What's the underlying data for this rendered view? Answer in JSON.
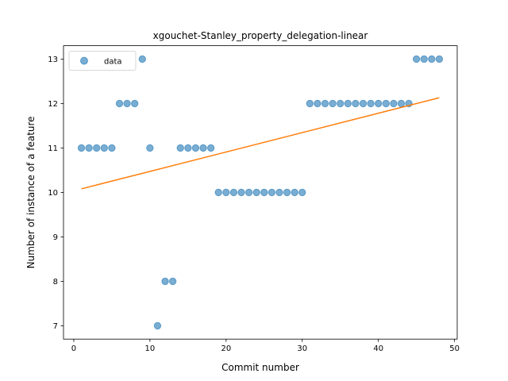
{
  "chart_data": {
    "type": "scatter",
    "title": "xgouchet-Stanley_property_delegation-linear",
    "xlabel": "Commit number",
    "ylabel": "Number of instance of a feature",
    "xlim": [
      -1.35,
      50.35
    ],
    "ylim": [
      6.7,
      13.3
    ],
    "xticks": [
      0,
      10,
      20,
      30,
      40,
      50
    ],
    "yticks": [
      7,
      8,
      9,
      10,
      11,
      12,
      13
    ],
    "grid": false,
    "legend_position": "upper-left",
    "series": [
      {
        "name": "data",
        "kind": "scatter",
        "color": "#1f77b4",
        "x": [
          1,
          2,
          3,
          4,
          5,
          6,
          7,
          8,
          9,
          10,
          11,
          12,
          13,
          14,
          15,
          16,
          17,
          18,
          19,
          20,
          21,
          22,
          23,
          24,
          25,
          26,
          27,
          28,
          29,
          30,
          31,
          32,
          33,
          34,
          35,
          36,
          37,
          38,
          39,
          40,
          41,
          42,
          43,
          44,
          45,
          46,
          47,
          48
        ],
        "y": [
          11,
          11,
          11,
          11,
          11,
          12,
          12,
          12,
          13,
          11,
          7,
          8,
          8,
          11,
          11,
          11,
          11,
          11,
          10,
          10,
          10,
          10,
          10,
          10,
          10,
          10,
          10,
          10,
          10,
          10,
          12,
          12,
          12,
          12,
          12,
          12,
          12,
          12,
          12,
          12,
          12,
          12,
          12,
          12,
          13,
          13,
          13,
          13
        ]
      },
      {
        "name": "",
        "kind": "line",
        "color": "#ff7f0e",
        "x": [
          1,
          48
        ],
        "y": [
          10.08,
          12.13
        ]
      }
    ]
  }
}
